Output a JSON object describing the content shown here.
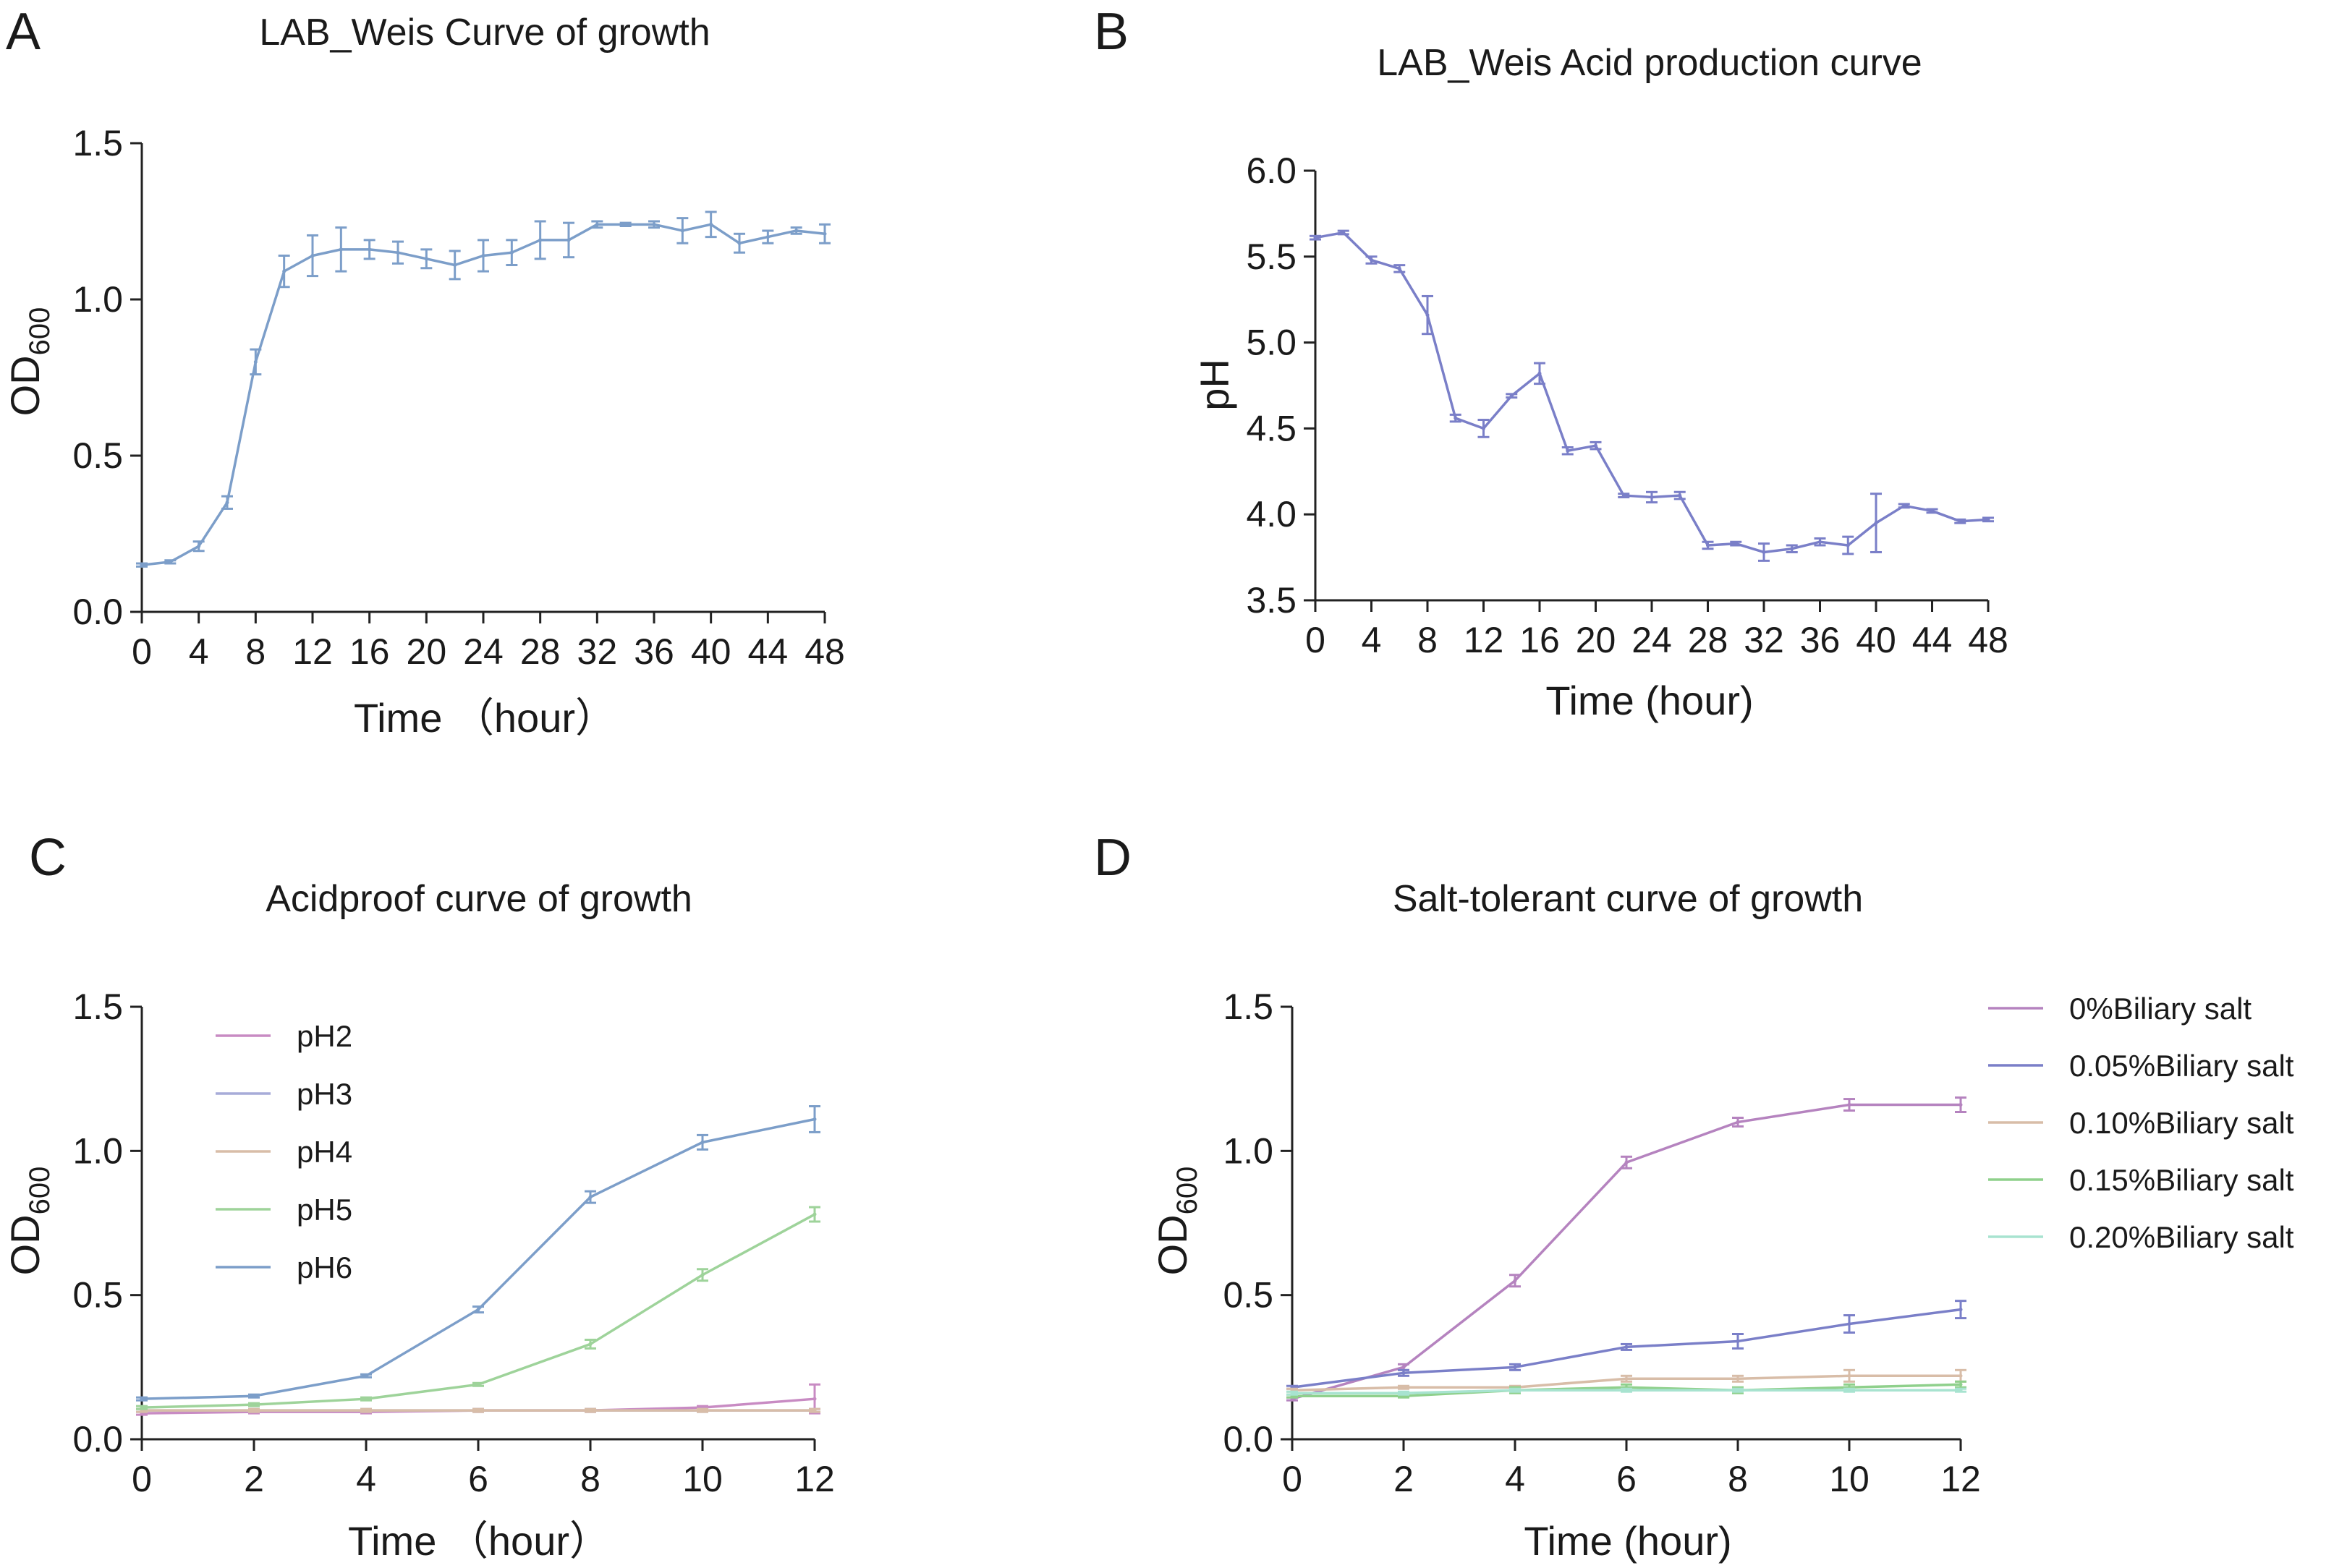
{
  "chart_data": [
    {
      "panel": "A",
      "type": "line",
      "title": "LAB_Weis Curve of growth",
      "xlabel": "Time （hour）",
      "ylabel": "OD",
      "ylabel_sub": "600",
      "xlim": [
        0,
        48
      ],
      "ylim": [
        0,
        1.5
      ],
      "xticks": [
        0,
        4,
        8,
        12,
        16,
        20,
        24,
        28,
        32,
        36,
        40,
        44,
        48
      ],
      "yticks": [
        0,
        0.5,
        1.0,
        1.5
      ],
      "ytick_labels": [
        "0.0",
        "0.5",
        "1.0",
        "1.5"
      ],
      "grid": false,
      "series": [
        {
          "name": "LAB_Weis",
          "color": "#7c9ec9",
          "x": [
            0,
            2,
            4,
            6,
            8,
            10,
            12,
            14,
            16,
            18,
            20,
            22,
            24,
            26,
            28,
            30,
            32,
            34,
            36,
            38,
            40,
            42,
            44,
            46,
            48
          ],
          "y": [
            0.15,
            0.16,
            0.21,
            0.35,
            0.8,
            1.09,
            1.14,
            1.16,
            1.16,
            1.15,
            1.13,
            1.11,
            1.14,
            1.15,
            1.19,
            1.19,
            1.24,
            1.24,
            1.24,
            1.22,
            1.24,
            1.18,
            1.2,
            1.22,
            1.21
          ],
          "err": [
            0.005,
            0.005,
            0.015,
            0.02,
            0.04,
            0.05,
            0.065,
            0.07,
            0.03,
            0.035,
            0.03,
            0.045,
            0.05,
            0.04,
            0.06,
            0.055,
            0.01,
            0.005,
            0.01,
            0.04,
            0.04,
            0.03,
            0.02,
            0.01,
            0.03
          ]
        }
      ]
    },
    {
      "panel": "B",
      "type": "line",
      "title": "LAB_Weis Acid production curve",
      "xlabel": "Time (hour)",
      "ylabel": "pH",
      "ylabel_sub": "",
      "xlim": [
        0,
        48
      ],
      "ylim": [
        3.5,
        6.0
      ],
      "xticks": [
        0,
        4,
        8,
        12,
        16,
        20,
        24,
        28,
        32,
        36,
        40,
        44,
        48
      ],
      "yticks": [
        3.5,
        4.0,
        4.5,
        5.0,
        5.5,
        6.0
      ],
      "ytick_labels": [
        "3.5",
        "4.0",
        "4.5",
        "5.0",
        "5.5",
        "6.0"
      ],
      "grid": false,
      "series": [
        {
          "name": "LAB_Weis",
          "color": "#7a7fc8",
          "x": [
            0,
            2,
            4,
            6,
            8,
            10,
            12,
            14,
            16,
            18,
            20,
            22,
            24,
            26,
            28,
            30,
            32,
            34,
            36,
            38,
            40,
            42,
            44,
            46,
            48
          ],
          "y": [
            5.61,
            5.64,
            5.48,
            5.43,
            5.16,
            4.56,
            4.5,
            4.69,
            4.82,
            4.37,
            4.4,
            4.11,
            4.1,
            4.11,
            3.82,
            3.83,
            3.78,
            3.8,
            3.84,
            3.82,
            3.95,
            4.05,
            4.02,
            3.96,
            3.97
          ],
          "err": [
            0.01,
            0.01,
            0.02,
            0.02,
            0.11,
            0.02,
            0.05,
            0.01,
            0.06,
            0.02,
            0.02,
            0.01,
            0.03,
            0.02,
            0.02,
            0.01,
            0.05,
            0.02,
            0.02,
            0.05,
            0.17,
            0.01,
            0.01,
            0.01,
            0.01
          ]
        }
      ]
    },
    {
      "panel": "C",
      "type": "line",
      "title": "Acidproof curve of growth",
      "xlabel": "Time （hour）",
      "ylabel": "OD",
      "ylabel_sub": "600",
      "xlim": [
        0,
        12
      ],
      "ylim": [
        0,
        1.5
      ],
      "xticks": [
        0,
        2,
        4,
        6,
        8,
        10,
        12
      ],
      "yticks": [
        0,
        0.5,
        1.0,
        1.5
      ],
      "ytick_labels": [
        "0.0",
        "0.5",
        "1.0",
        "1.5"
      ],
      "grid": false,
      "legend_position": "top-left",
      "x": [
        0,
        2,
        4,
        6,
        8,
        10,
        12
      ],
      "series": [
        {
          "name": "pH2",
          "color": "#c88bc3",
          "values": [
            0.09,
            0.095,
            0.095,
            0.1,
            0.1,
            0.11,
            0.14
          ],
          "err": [
            0.005,
            0.005,
            0.005,
            0.005,
            0.005,
            0.005,
            0.05
          ]
        },
        {
          "name": "pH3",
          "color": "#a7acd8",
          "values": [
            0.1,
            0.1,
            0.1,
            0.1,
            0.1,
            0.1,
            0.1
          ],
          "err": [
            0.005,
            0.005,
            0.005,
            0.005,
            0.005,
            0.005,
            0.005
          ]
        },
        {
          "name": "pH4",
          "color": "#d8bda8",
          "values": [
            0.1,
            0.1,
            0.1,
            0.1,
            0.1,
            0.1,
            0.1
          ],
          "err": [
            0.005,
            0.005,
            0.005,
            0.005,
            0.005,
            0.005,
            0.005
          ]
        },
        {
          "name": "pH5",
          "color": "#9ed39a",
          "values": [
            0.11,
            0.12,
            0.14,
            0.19,
            0.33,
            0.57,
            0.78
          ],
          "err": [
            0.005,
            0.005,
            0.005,
            0.005,
            0.015,
            0.02,
            0.025
          ]
        },
        {
          "name": "pH6",
          "color": "#7c9ec9",
          "values": [
            0.14,
            0.15,
            0.22,
            0.45,
            0.84,
            1.03,
            1.11
          ],
          "err": [
            0.005,
            0.005,
            0.005,
            0.01,
            0.02,
            0.025,
            0.045
          ]
        }
      ]
    },
    {
      "panel": "D",
      "type": "line",
      "title": "Salt-tolerant curve of growth",
      "xlabel": "Time (hour)",
      "ylabel": "OD",
      "ylabel_sub": "600",
      "xlim": [
        0,
        12
      ],
      "ylim": [
        0,
        1.5
      ],
      "xticks": [
        0,
        2,
        4,
        6,
        8,
        10,
        12
      ],
      "yticks": [
        0,
        0.5,
        1.0,
        1.5
      ],
      "ytick_labels": [
        "0.0",
        "0.5",
        "1.0",
        "1.5"
      ],
      "grid": false,
      "legend_position": "right",
      "x": [
        0,
        2,
        4,
        6,
        8,
        10,
        12
      ],
      "series": [
        {
          "name": "0%Biliary salt",
          "color": "#b583bf",
          "values": [
            0.14,
            0.25,
            0.55,
            0.96,
            1.1,
            1.16,
            1.16
          ],
          "err": [
            0.005,
            0.01,
            0.02,
            0.02,
            0.015,
            0.02,
            0.025
          ]
        },
        {
          "name": "0.05%Biliary salt",
          "color": "#7a7fc8",
          "values": [
            0.18,
            0.23,
            0.25,
            0.32,
            0.34,
            0.4,
            0.45
          ],
          "err": [
            0.005,
            0.01,
            0.01,
            0.01,
            0.025,
            0.03,
            0.03
          ]
        },
        {
          "name": "0.10%Biliary salt",
          "color": "#d8bda8",
          "values": [
            0.17,
            0.18,
            0.18,
            0.21,
            0.21,
            0.22,
            0.22
          ],
          "err": [
            0.005,
            0.005,
            0.005,
            0.01,
            0.01,
            0.02,
            0.02
          ]
        },
        {
          "name": "0.15%Biliary salt",
          "color": "#8fd08c",
          "values": [
            0.15,
            0.15,
            0.17,
            0.18,
            0.17,
            0.18,
            0.19
          ],
          "err": [
            0.005,
            0.005,
            0.01,
            0.01,
            0.01,
            0.01,
            0.01
          ]
        },
        {
          "name": "0.20%Biliary salt",
          "color": "#a8e3d0",
          "values": [
            0.16,
            0.16,
            0.17,
            0.17,
            0.17,
            0.17,
            0.17
          ],
          "err": [
            0.005,
            0.005,
            0.005,
            0.005,
            0.005,
            0.005,
            0.005
          ]
        }
      ]
    }
  ]
}
